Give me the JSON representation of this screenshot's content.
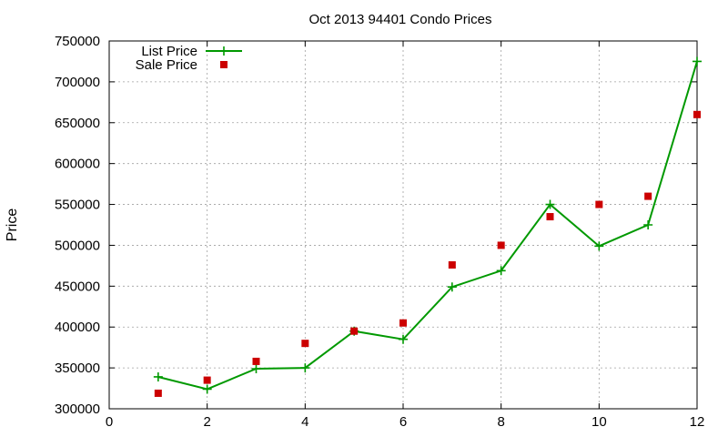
{
  "chart_data": {
    "type": "line",
    "title": "Oct 2013 94401 Condo Prices",
    "xlabel": "",
    "ylabel": "Price",
    "xlim": [
      0,
      12
    ],
    "ylim": [
      300000,
      750000
    ],
    "xticks": [
      0,
      2,
      4,
      6,
      8,
      10,
      12
    ],
    "yticks": [
      300000,
      350000,
      400000,
      450000,
      500000,
      550000,
      600000,
      650000,
      700000,
      750000
    ],
    "grid": true,
    "legend_position": "top-left",
    "series": [
      {
        "name": "List Price",
        "style": "line-plus",
        "color": "#009900",
        "x": [
          1,
          2,
          3,
          4,
          5,
          6,
          7,
          8,
          9,
          10,
          11,
          12
        ],
        "values": [
          339000,
          324000,
          349000,
          350000,
          395000,
          385000,
          449000,
          469000,
          550000,
          499000,
          525000,
          725000
        ]
      },
      {
        "name": "Sale Price",
        "style": "square-points",
        "color": "#cc0000",
        "x": [
          1,
          2,
          3,
          4,
          5,
          6,
          7,
          8,
          9,
          10,
          11,
          12
        ],
        "values": [
          319000,
          335000,
          358000,
          380000,
          395000,
          405000,
          476000,
          500000,
          535000,
          550000,
          560000,
          660000
        ]
      }
    ]
  }
}
